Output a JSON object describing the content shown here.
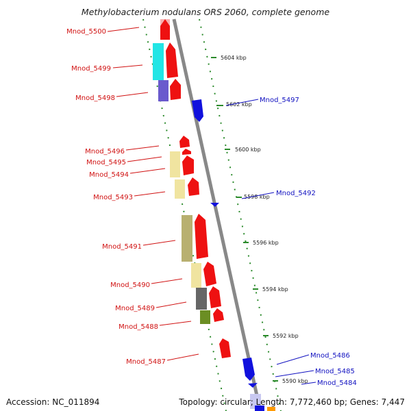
{
  "title": "Methylobacterium nodulans ORS 2060, complete genome",
  "footer": {
    "accession": "Accession: NC_011894",
    "summary": "Topology: circular; Length: 7,772,460 bp; Genes: 7,447"
  },
  "colors": {
    "backbone": "#8a8a8a",
    "forward_red": "#ee1111",
    "reverse_blue": "#1111dd",
    "tick_green": "#2a8a2a"
  },
  "scale": [
    {
      "label": "5604 kbp"
    },
    {
      "label": "5602 kbp"
    },
    {
      "label": "5600 kbp"
    },
    {
      "label": "5598 kbp"
    },
    {
      "label": "5596 kbp"
    },
    {
      "label": "5594 kbp"
    },
    {
      "label": "5592 kbp"
    },
    {
      "label": "5590 kbp"
    }
  ],
  "gene_labels_left": [
    {
      "label": "Mnod_5500"
    },
    {
      "label": "Mnod_5499"
    },
    {
      "label": "Mnod_5498"
    },
    {
      "label": "Mnod_5496"
    },
    {
      "label": "Mnod_5495"
    },
    {
      "label": "Mnod_5494"
    },
    {
      "label": "Mnod_5493"
    },
    {
      "label": "Mnod_5491"
    },
    {
      "label": "Mnod_5490"
    },
    {
      "label": "Mnod_5489"
    },
    {
      "label": "Mnod_5488"
    },
    {
      "label": "Mnod_5487"
    }
  ],
  "gene_labels_right": [
    {
      "label": "Mnod_5497"
    },
    {
      "label": "Mnod_5492"
    },
    {
      "label": "Mnod_5486"
    },
    {
      "label": "Mnod_5485"
    },
    {
      "label": "Mnod_5484"
    }
  ]
}
